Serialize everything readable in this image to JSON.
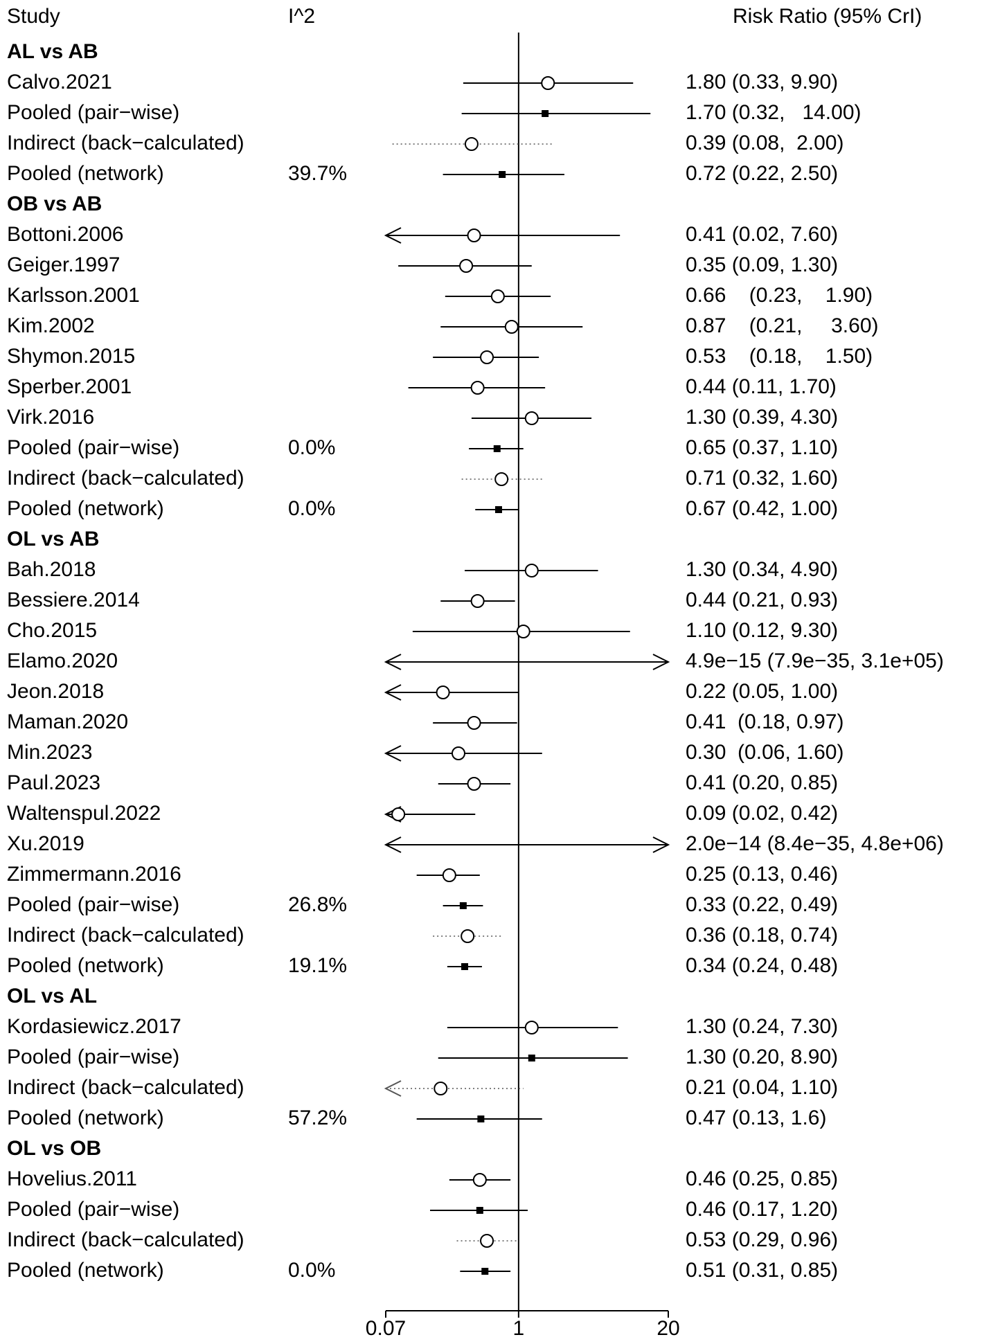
{
  "chart_data": {
    "type": "forest",
    "headers": [
      "Study",
      "I^2",
      "Risk Ratio (95% CrI)"
    ],
    "log_scale": true,
    "xlim": [
      0.07,
      20
    ],
    "xticks": [
      0.07,
      1,
      20
    ],
    "reference": 1,
    "groups": [
      {
        "title": "AL vs AB",
        "rows": [
          {
            "label": "Calvo.2021",
            "value": 1.8,
            "lower": 0.33,
            "upper": 9.9,
            "value_label": "1.80 (0.33, 9.90)",
            "marker": "circle",
            "line": "solid"
          },
          {
            "label": "Pooled (pair−wise)",
            "value": 1.7,
            "lower": 0.32,
            "upper": 14.0,
            "value_label": "1.70 (0.32,   14.00)",
            "marker": "square",
            "line": "solid"
          },
          {
            "label": "Indirect (back−calculated)",
            "value": 0.39,
            "lower": 0.08,
            "upper": 2.0,
            "value_label": "0.39 (0.08,  2.00)",
            "marker": "circle",
            "line": "dotted"
          },
          {
            "label": "Pooled (network)",
            "i2": "39.7%",
            "value": 0.72,
            "lower": 0.22,
            "upper": 2.5,
            "value_label": "0.72 (0.22, 2.50)",
            "marker": "square",
            "line": "solid"
          }
        ]
      },
      {
        "title": "OB vs AB",
        "rows": [
          {
            "label": "Bottoni.2006",
            "value": 0.41,
            "lower": 0.02,
            "upper": 7.6,
            "value_label": "0.41 (0.02, 7.60)",
            "marker": "circle",
            "line": "solid"
          },
          {
            "label": "Geiger.1997",
            "value": 0.35,
            "lower": 0.09,
            "upper": 1.3,
            "value_label": "0.35 (0.09, 1.30)",
            "marker": "circle",
            "line": "solid"
          },
          {
            "label": "Karlsson.2001",
            "value": 0.66,
            "lower": 0.23,
            "upper": 1.9,
            "value_label": "0.66    (0.23,    1.90)",
            "marker": "circle",
            "line": "solid"
          },
          {
            "label": "Kim.2002",
            "value": 0.87,
            "lower": 0.21,
            "upper": 3.6,
            "value_label": "0.87    (0.21,     3.60)",
            "marker": "circle",
            "line": "solid"
          },
          {
            "label": "Shymon.2015",
            "value": 0.53,
            "lower": 0.18,
            "upper": 1.5,
            "value_label": "0.53    (0.18,    1.50)",
            "marker": "circle",
            "line": "solid"
          },
          {
            "label": "Sperber.2001",
            "value": 0.44,
            "lower": 0.11,
            "upper": 1.7,
            "value_label": "0.44 (0.11, 1.70)",
            "marker": "circle",
            "line": "solid"
          },
          {
            "label": "Virk.2016",
            "value": 1.3,
            "lower": 0.39,
            "upper": 4.3,
            "value_label": "1.30 (0.39, 4.30)",
            "marker": "circle",
            "line": "solid"
          },
          {
            "label": "Pooled (pair−wise)",
            "i2": "0.0%",
            "value": 0.65,
            "lower": 0.37,
            "upper": 1.1,
            "value_label": "0.65 (0.37, 1.10)",
            "marker": "square",
            "line": "solid"
          },
          {
            "label": "Indirect (back−calculated)",
            "value": 0.71,
            "lower": 0.32,
            "upper": 1.6,
            "value_label": "0.71 (0.32, 1.60)",
            "marker": "circle",
            "line": "dotted"
          },
          {
            "label": "Pooled (network)",
            "i2": "0.0%",
            "value": 0.67,
            "lower": 0.42,
            "upper": 1.0,
            "value_label": "0.67 (0.42, 1.00)",
            "marker": "square",
            "line": "solid"
          }
        ]
      },
      {
        "title": "OL vs AB",
        "rows": [
          {
            "label": "Bah.2018",
            "value": 1.3,
            "lower": 0.34,
            "upper": 4.9,
            "value_label": "1.30 (0.34, 4.90)",
            "marker": "circle",
            "line": "solid"
          },
          {
            "label": "Bessiere.2014",
            "value": 0.44,
            "lower": 0.21,
            "upper": 0.93,
            "value_label": "0.44 (0.21, 0.93)",
            "marker": "circle",
            "line": "solid"
          },
          {
            "label": "Cho.2015",
            "value": 1.1,
            "lower": 0.12,
            "upper": 9.3,
            "value_label": "1.10 (0.12, 9.30)",
            "marker": "circle",
            "line": "solid"
          },
          {
            "label": "Elamo.2020",
            "value": 4.9e-15,
            "lower": 7.9e-35,
            "upper": 310000,
            "value_label": "4.9e−15 (7.9e−35, 3.1e+05)",
            "marker": "circle",
            "line": "solid"
          },
          {
            "label": "Jeon.2018",
            "value": 0.22,
            "lower": 0.05,
            "upper": 1.0,
            "value_label": "0.22 (0.05, 1.00)",
            "marker": "circle",
            "line": "solid"
          },
          {
            "label": "Maman.2020",
            "value": 0.41,
            "lower": 0.18,
            "upper": 0.97,
            "value_label": "0.41  (0.18, 0.97)",
            "marker": "circle",
            "line": "solid"
          },
          {
            "label": "Min.2023",
            "value": 0.3,
            "lower": 0.06,
            "upper": 1.6,
            "value_label": "0.30  (0.06, 1.60)",
            "marker": "circle",
            "line": "solid"
          },
          {
            "label": "Paul.2023",
            "value": 0.41,
            "lower": 0.2,
            "upper": 0.85,
            "value_label": "0.41 (0.20, 0.85)",
            "marker": "circle",
            "line": "solid"
          },
          {
            "label": "Waltenspul.2022",
            "value": 0.09,
            "lower": 0.02,
            "upper": 0.42,
            "value_label": "0.09 (0.02, 0.42)",
            "marker": "circle",
            "line": "solid"
          },
          {
            "label": "Xu.2019",
            "value": 2e-14,
            "lower": 8.4e-35,
            "upper": 4800000,
            "value_label": "2.0e−14 (8.4e−35, 4.8e+06)",
            "marker": "circle",
            "line": "solid"
          },
          {
            "label": "Zimmermann.2016",
            "value": 0.25,
            "lower": 0.13,
            "upper": 0.46,
            "value_label": "0.25 (0.13, 0.46)",
            "marker": "circle",
            "line": "solid"
          },
          {
            "label": "Pooled (pair−wise)",
            "i2": "26.8%",
            "value": 0.33,
            "lower": 0.22,
            "upper": 0.49,
            "value_label": "0.33 (0.22, 0.49)",
            "marker": "square",
            "line": "solid"
          },
          {
            "label": "Indirect (back−calculated)",
            "value": 0.36,
            "lower": 0.18,
            "upper": 0.74,
            "value_label": "0.36 (0.18, 0.74)",
            "marker": "circle",
            "line": "dotted"
          },
          {
            "label": "Pooled (network)",
            "i2": "19.1%",
            "value": 0.34,
            "lower": 0.24,
            "upper": 0.48,
            "value_label": "0.34 (0.24, 0.48)",
            "marker": "square",
            "line": "solid"
          }
        ]
      },
      {
        "title": "OL vs AL",
        "rows": [
          {
            "label": "Kordasiewicz.2017",
            "value": 1.3,
            "lower": 0.24,
            "upper": 7.3,
            "value_label": "1.30 (0.24, 7.30)",
            "marker": "circle",
            "line": "solid"
          },
          {
            "label": "Pooled (pair−wise)",
            "value": 1.3,
            "lower": 0.2,
            "upper": 8.9,
            "value_label": "1.30 (0.20, 8.90)",
            "marker": "square",
            "line": "solid"
          },
          {
            "label": "Indirect (back−calculated)",
            "value": 0.21,
            "lower": 0.04,
            "upper": 1.1,
            "value_label": "0.21 (0.04, 1.10)",
            "marker": "circle",
            "line": "dotted"
          },
          {
            "label": "Pooled (network)",
            "i2": "57.2%",
            "value": 0.47,
            "lower": 0.13,
            "upper": 1.6,
            "value_label": "0.47 (0.13, 1.6)",
            "marker": "square",
            "line": "solid"
          }
        ]
      },
      {
        "title": "OL vs OB",
        "rows": [
          {
            "label": "Hovelius.2011",
            "value": 0.46,
            "lower": 0.25,
            "upper": 0.85,
            "value_label": "0.46 (0.25, 0.85)",
            "marker": "circle",
            "line": "solid"
          },
          {
            "label": "Pooled (pair−wise)",
            "value": 0.46,
            "lower": 0.17,
            "upper": 1.2,
            "value_label": "0.46 (0.17, 1.20)",
            "marker": "square",
            "line": "solid"
          },
          {
            "label": "Indirect (back−calculated)",
            "value": 0.53,
            "lower": 0.29,
            "upper": 0.96,
            "value_label": "0.53 (0.29, 0.96)",
            "marker": "circle",
            "line": "dotted"
          },
          {
            "label": "Pooled (network)",
            "i2": "0.0%",
            "value": 0.51,
            "lower": 0.31,
            "upper": 0.85,
            "value_label": "0.51 (0.31, 0.85)",
            "marker": "square",
            "line": "solid"
          }
        ]
      }
    ]
  }
}
